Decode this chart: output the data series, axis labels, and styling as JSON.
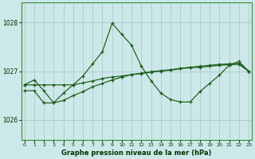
{
  "title": "Graphe pression niveau de la mer (hPa)",
  "bg_color": "#cce8e8",
  "grid_color": "#aacccc",
  "line_color": "#1a5c1a",
  "text_color": "#003300",
  "ylim": [
    1025.6,
    1028.4
  ],
  "yticks": [
    1026,
    1027,
    1028
  ],
  "xlim": [
    -0.3,
    23.3
  ],
  "xticks": [
    0,
    1,
    2,
    3,
    4,
    5,
    6,
    7,
    8,
    9,
    10,
    11,
    12,
    13,
    14,
    15,
    16,
    17,
    18,
    19,
    20,
    21,
    22,
    23
  ],
  "line1_x": [
    0,
    1,
    2,
    3,
    4,
    5,
    6,
    7,
    8,
    9,
    10,
    11,
    12,
    13,
    14,
    15,
    16,
    17,
    18,
    19,
    20,
    21,
    22,
    23
  ],
  "line1_y": [
    1026.72,
    1026.72,
    1026.72,
    1026.72,
    1026.72,
    1026.72,
    1026.76,
    1026.8,
    1026.85,
    1026.88,
    1026.9,
    1026.93,
    1026.95,
    1026.98,
    1027.0,
    1027.02,
    1027.05,
    1027.07,
    1027.08,
    1027.1,
    1027.12,
    1027.13,
    1027.14,
    1027.0
  ],
  "line2_x": [
    0,
    1,
    2,
    3,
    4,
    5,
    6,
    7,
    8,
    9,
    10,
    11,
    12,
    13,
    14,
    15,
    16,
    17,
    18,
    19,
    20,
    21,
    22,
    23
  ],
  "line2_y": [
    1026.6,
    1026.6,
    1026.35,
    1026.35,
    1026.4,
    1026.5,
    1026.58,
    1026.68,
    1026.75,
    1026.82,
    1026.88,
    1026.93,
    1026.96,
    1026.99,
    1027.01,
    1027.03,
    1027.06,
    1027.08,
    1027.1,
    1027.12,
    1027.14,
    1027.15,
    1027.16,
    1027.0
  ],
  "line3_x": [
    0,
    1,
    2,
    3,
    4,
    5,
    6,
    7,
    8,
    9,
    10,
    11,
    12,
    13,
    14,
    15,
    16,
    17,
    18,
    19,
    20,
    21,
    22,
    23
  ],
  "line3_y": [
    1026.72,
    1026.82,
    1026.6,
    1026.35,
    1026.55,
    1026.72,
    1026.9,
    1027.15,
    1027.4,
    1027.98,
    1027.75,
    1027.53,
    1027.1,
    1026.8,
    1026.55,
    1026.42,
    1026.37,
    1026.37,
    1026.58,
    1026.75,
    1026.92,
    1027.12,
    1027.2,
    1027.0
  ]
}
